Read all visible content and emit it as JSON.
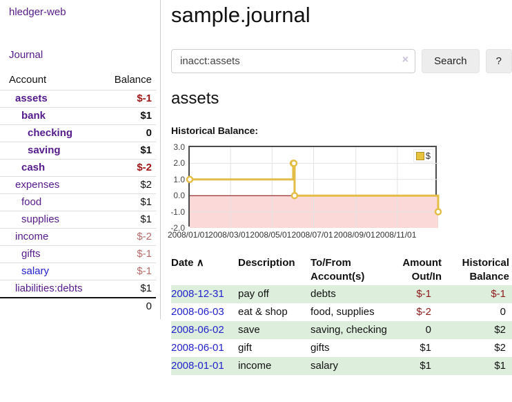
{
  "colors": {
    "link_purple": "#551a8b",
    "link_blue": "#2222cc",
    "negative_bold": "#9e1616",
    "negative_soft": "#b76a6a",
    "negative_table": "#8f1a1a",
    "row_green": "#ddeedd"
  },
  "sidebar": {
    "brand": "hledger-web",
    "journal_link": "Journal",
    "accounts_table": {
      "headers": [
        "Account",
        "Balance"
      ],
      "rows": [
        {
          "account": "assets",
          "balance": "$-1",
          "indent": 1,
          "bold": true,
          "blue": false
        },
        {
          "account": "bank",
          "balance": "$1",
          "indent": 2,
          "bold": true,
          "blue": false
        },
        {
          "account": "checking",
          "balance": "0",
          "indent": 3,
          "bold": true,
          "blue": false
        },
        {
          "account": "saving",
          "balance": "$1",
          "indent": 3,
          "bold": true,
          "blue": false
        },
        {
          "account": "cash",
          "balance": "$-2",
          "indent": 2,
          "bold": true,
          "blue": false
        },
        {
          "account": "expenses",
          "balance": "$2",
          "indent": 1,
          "bold": false,
          "blue": false
        },
        {
          "account": "food",
          "balance": "$1",
          "indent": 2,
          "bold": false,
          "blue": false
        },
        {
          "account": "supplies",
          "balance": "$1",
          "indent": 2,
          "bold": false,
          "blue": false
        },
        {
          "account": "income",
          "balance": "$-2",
          "indent": 1,
          "bold": false,
          "blue": false
        },
        {
          "account": "gifts",
          "balance": "$-1",
          "indent": 2,
          "bold": false,
          "blue": false
        },
        {
          "account": "salary",
          "balance": "$-1",
          "indent": 2,
          "bold": false,
          "blue": true
        },
        {
          "account": "liabilities:debts",
          "balance": "$1",
          "indent": 1,
          "bold": false,
          "blue": false
        }
      ],
      "total": "0"
    }
  },
  "main": {
    "title": "sample.journal",
    "search": {
      "value": "inacct:assets",
      "clear_icon": "×",
      "button_label": "Search",
      "help_label": "?"
    },
    "account_heading": "assets",
    "section_label": "Historical Balance:"
  },
  "chart_data": {
    "type": "line",
    "title": "Historical Balance",
    "series": [
      {
        "name": "$",
        "x": [
          "2008-01-01",
          "2008-06-01",
          "2008-06-02",
          "2008-06-03",
          "2008-12-31"
        ],
        "y": [
          1,
          2,
          2,
          0,
          -1
        ]
      }
    ],
    "step": "after",
    "ylim": [
      -2,
      3
    ],
    "yticks": [
      "3.0",
      "2.0",
      "1.0",
      "0.0",
      "-1.0",
      "-2.0"
    ],
    "xticks": [
      "2008/01/01",
      "2008/03/01",
      "2008/05/01",
      "2008/07/01",
      "2008/09/01",
      "2008/11/01"
    ],
    "xrange_days": 365,
    "grid": true,
    "legend_position": "top-right",
    "legend": [
      {
        "label": "$",
        "color": "#e7c33f"
      }
    ],
    "colors": {
      "line": "#e3bd45",
      "marker_fill": "#ffffff",
      "zero_line": "#7f0000",
      "negative_region": "#fbd9d9",
      "grid": "#e3e3e3",
      "border": "#4a4a4a"
    }
  },
  "transactions": {
    "headers": [
      "Date",
      "Description",
      "To/From Account(s)",
      "Amount Out/In",
      "Historical Balance"
    ],
    "sort_indicator": "∧",
    "rows": [
      {
        "date": "2008-12-31",
        "description": "pay off",
        "accounts": "debts",
        "amount": "$-1",
        "balance": "$-1"
      },
      {
        "date": "2008-06-03",
        "description": "eat & shop",
        "accounts": "food, supplies",
        "amount": "$-2",
        "balance": "0"
      },
      {
        "date": "2008-06-02",
        "description": "save",
        "accounts": "saving, checking",
        "amount": "0",
        "balance": "$2"
      },
      {
        "date": "2008-06-01",
        "description": "gift",
        "accounts": "gifts",
        "amount": "$1",
        "balance": "$2"
      },
      {
        "date": "2008-01-01",
        "description": "income",
        "accounts": "salary",
        "amount": "$1",
        "balance": "$1"
      }
    ]
  }
}
